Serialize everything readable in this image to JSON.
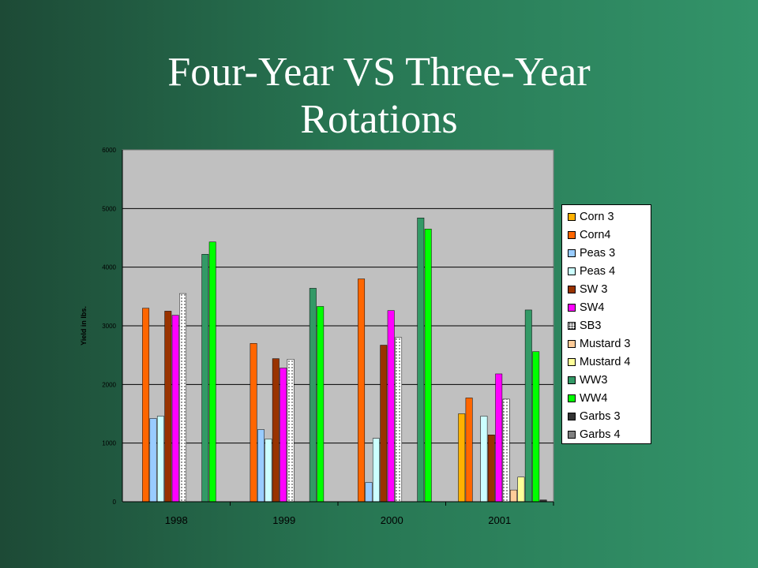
{
  "slide": {
    "title_line1": "Four-Year VS Three-Year",
    "title_line2": "Rotations"
  },
  "chart_data": {
    "type": "bar",
    "title": "",
    "xlabel": "",
    "ylabel": "Yield in lbs.",
    "ylim": [
      0,
      6000
    ],
    "yticks": [
      0,
      1000,
      2000,
      3000,
      4000,
      5000,
      6000
    ],
    "grid": true,
    "legend_position": "right",
    "categories": [
      "1998",
      "1999",
      "2000",
      "2001"
    ],
    "series": [
      {
        "name": "Corn 3",
        "color": "#ffb100",
        "values": [
          0,
          0,
          0,
          1500
        ]
      },
      {
        "name": "Corn4",
        "color": "#ff6600",
        "values": [
          3300,
          2700,
          3800,
          1770
        ]
      },
      {
        "name": "Peas 3",
        "color": "#99ccff",
        "values": [
          1420,
          1230,
          330,
          0
        ]
      },
      {
        "name": "Peas 4",
        "color": "#ccffff",
        "values": [
          1460,
          1070,
          1080,
          1460
        ]
      },
      {
        "name": "SW 3",
        "color": "#993300",
        "values": [
          3250,
          2440,
          2670,
          1140
        ]
      },
      {
        "name": "SW4",
        "color": "#ff00ff",
        "values": [
          3180,
          2280,
          3260,
          2180
        ]
      },
      {
        "name": "SB3",
        "color": "#ffffff",
        "pattern": "dotted",
        "values": [
          3550,
          2430,
          2800,
          1750
        ]
      },
      {
        "name": "Mustard 3",
        "color": "#ffcc99",
        "values": [
          0,
          0,
          0,
          200
        ]
      },
      {
        "name": "Mustard 4",
        "color": "#ffff99",
        "values": [
          0,
          0,
          0,
          420
        ]
      },
      {
        "name": "WW3",
        "color": "#339966",
        "values": [
          4220,
          3640,
          4840,
          3270
        ]
      },
      {
        "name": "WW4",
        "color": "#00ff00",
        "values": [
          4430,
          3330,
          4650,
          2560
        ]
      },
      {
        "name": "Garbs 3",
        "color": "#333333",
        "values": [
          0,
          0,
          0,
          30
        ]
      },
      {
        "name": "Garbs 4",
        "color": "#808080",
        "values": [
          0,
          0,
          0,
          0
        ]
      }
    ]
  }
}
